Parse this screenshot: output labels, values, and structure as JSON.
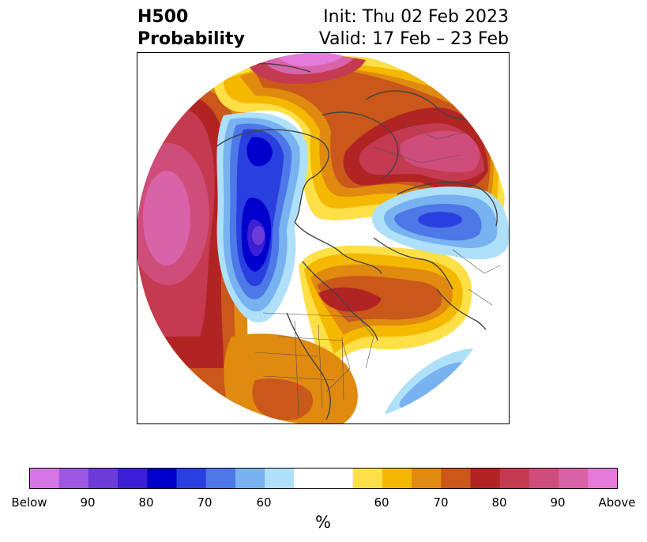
{
  "title": {
    "line1": "H500",
    "line2": "Probability",
    "init": "Init: Thu 02 Feb 2023",
    "valid": "Valid: 17 Feb – 23 Feb"
  },
  "colorbar": {
    "unit": "%",
    "below_colors": [
      "#d676e6",
      "#9d57e0",
      "#6c3bd8",
      "#3a1fd6",
      "#0000cd",
      "#2a3fe0",
      "#4e77e8",
      "#78b2f0",
      "#aee0fa"
    ],
    "neutral_color": "#ffffff",
    "above_colors": [
      "#fde047",
      "#f4b800",
      "#e08a10",
      "#c9581a",
      "#b22424",
      "#c43a50",
      "#cf4d7a",
      "#d963a8",
      "#e57adb"
    ],
    "tick_labels": [
      "Below",
      "90",
      "80",
      "70",
      "60",
      "60",
      "70",
      "80",
      "90",
      "Above"
    ]
  },
  "map": {
    "region": "Northern Hemisphere polar stereographic",
    "anomalies": [
      {
        "sign": "below",
        "location": "Alaska / northwest Canada",
        "peak_percent": "90"
      },
      {
        "sign": "below",
        "location": "northern Siberia / Kara Sea",
        "peak_percent": "70"
      },
      {
        "sign": "below",
        "location": "North Atlantic (east of Bermuda)",
        "peak_percent": "60"
      },
      {
        "sign": "above",
        "location": "central North Pacific",
        "peak_percent": "Above"
      },
      {
        "sign": "above",
        "location": "Greenland / Arctic Canada",
        "peak_percent": "80"
      },
      {
        "sign": "above",
        "location": "Northern Europe / Scandinavia",
        "peak_percent": "90"
      },
      {
        "sign": "above",
        "location": "Eastern Canada / Hudson Bay",
        "peak_percent": "80"
      },
      {
        "sign": "above",
        "location": "Southwestern United States",
        "peak_percent": "70"
      }
    ]
  }
}
